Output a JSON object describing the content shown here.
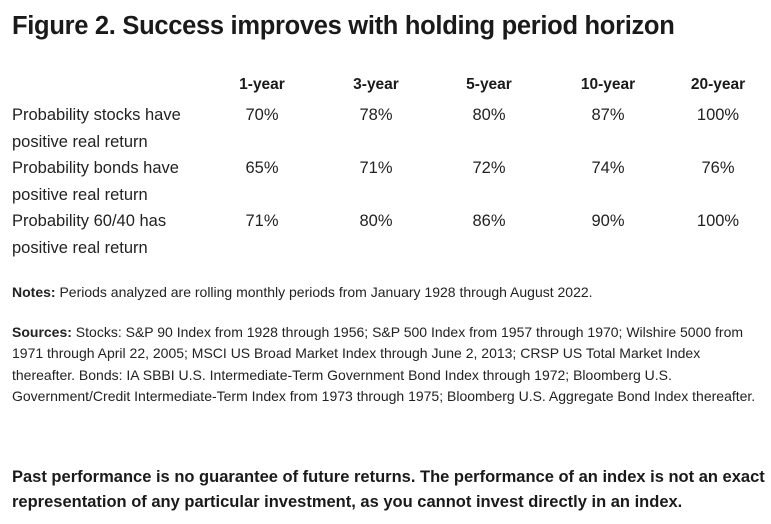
{
  "title": "Figure 2. Success improves with holding period horizon",
  "chart_data": {
    "type": "table",
    "columns": [
      "1-year",
      "3-year",
      "5-year",
      "10-year",
      "20-year"
    ],
    "rows": [
      {
        "label_line1": "Probability stocks have",
        "label_line2": "positive real return",
        "values": [
          "70%",
          "78%",
          "80%",
          "87%",
          "100%"
        ]
      },
      {
        "label_line1": "Probability bonds have",
        "label_line2": "positive real return",
        "values": [
          "65%",
          "71%",
          "72%",
          "74%",
          "76%"
        ]
      },
      {
        "label_line1": "Probability 60/40 has",
        "label_line2": "positive real return",
        "values": [
          "71%",
          "80%",
          "86%",
          "90%",
          "100%"
        ]
      }
    ]
  },
  "notes": {
    "label": "Notes:",
    "text": " Periods analyzed are rolling monthly periods from January 1928 through August 2022."
  },
  "sources": {
    "label": "Sources:",
    "text": " Stocks: S&P 90 Index from 1928 through 1956; S&P 500 Index from 1957 through 1970; Wilshire 5000 from 1971 through April 22, 2005; MSCI US Broad Market Index through June 2, 2013; CRSP US Total Market Index thereafter. Bonds: IA SBBI U.S. Intermediate-Term Government Bond Index through 1972; Bloomberg U.S. Government/Credit Intermediate-Term Index from 1973 through 1975; Bloomberg U.S. Aggregate Bond Index thereafter."
  },
  "disclaimer": "Past performance is no guarantee of future returns. The performance of an index is not an exact representation of any particular investment, as you cannot invest directly in an index."
}
